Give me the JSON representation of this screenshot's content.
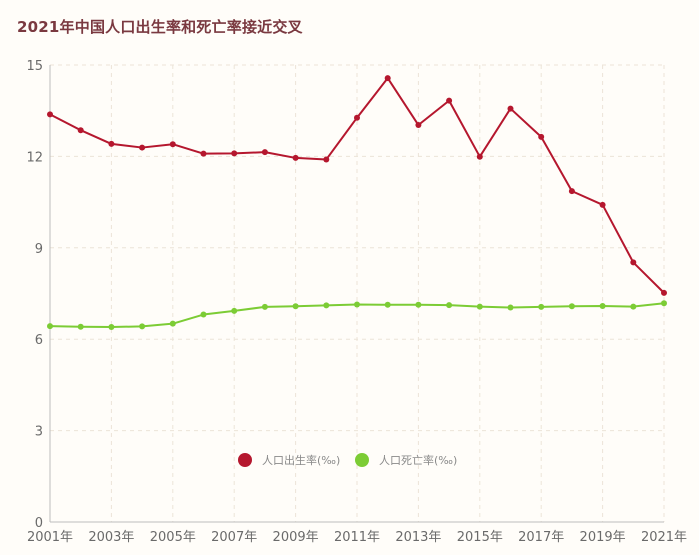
{
  "chart_data": {
    "type": "line",
    "title": "2021年中国人口出生率和死亡率接近交叉",
    "xlabel": "",
    "ylabel": "",
    "x": [
      2001,
      2002,
      2003,
      2004,
      2005,
      2006,
      2007,
      2008,
      2009,
      2010,
      2011,
      2012,
      2013,
      2014,
      2015,
      2016,
      2017,
      2018,
      2019,
      2020,
      2021
    ],
    "x_tick_labels": [
      "2001年",
      "2003年",
      "2005年",
      "2007年",
      "2009年",
      "2011年",
      "2013年",
      "2015年",
      "2017年",
      "2019年",
      "2021年"
    ],
    "y_ticks": [
      "0",
      "3",
      "6",
      "9",
      "12",
      "15"
    ],
    "ylim": [
      0,
      15
    ],
    "grid": true,
    "legend_position": "bottom-center",
    "series": [
      {
        "name": "人口出生率(‰)",
        "color": "#b5172e",
        "values": [
          13.38,
          12.86,
          12.41,
          12.29,
          12.4,
          12.09,
          12.1,
          12.14,
          11.95,
          11.9,
          13.27,
          14.57,
          13.03,
          13.83,
          11.99,
          13.57,
          12.64,
          10.86,
          10.41,
          8.52,
          7.52
        ]
      },
      {
        "name": "人口死亡率(‰)",
        "color": "#7ccc35",
        "values": [
          6.43,
          6.41,
          6.4,
          6.42,
          6.51,
          6.81,
          6.93,
          7.06,
          7.08,
          7.11,
          7.14,
          7.13,
          7.13,
          7.12,
          7.07,
          7.04,
          7.06,
          7.08,
          7.09,
          7.07,
          7.18
        ]
      }
    ]
  }
}
